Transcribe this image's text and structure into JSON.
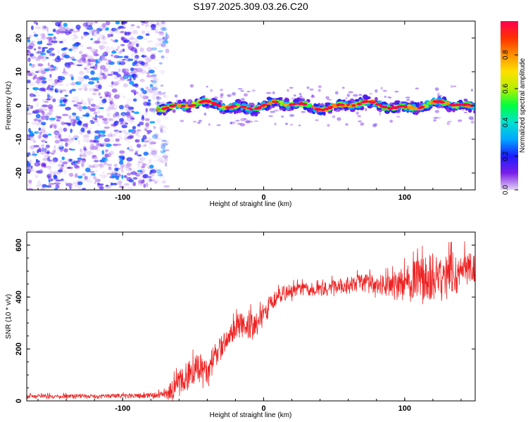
{
  "title": "S197.2025.309.03.26.C20",
  "chart_data": [
    {
      "type": "heatmap",
      "xlabel": "Height of straight line (km)",
      "ylabel": "Frequency (Hz)",
      "xlim": [
        -168,
        150
      ],
      "ylim": [
        -25,
        25
      ],
      "xticks": [
        -100,
        0,
        100
      ],
      "yticks": [
        -20,
        -10,
        0,
        10,
        20
      ],
      "noise_region_x": [
        -168,
        -68
      ],
      "signal_band_x": [
        -75,
        150
      ],
      "signal_band_center_hz": 0,
      "signal_band_halfwidth_hz": 2,
      "colorbar": {
        "label": "Normalized spectral amplitude",
        "range": [
          0,
          1
        ],
        "ticks": [
          0.0,
          0.2,
          0.4,
          0.6,
          0.8
        ],
        "colors": [
          "#e4d3f4",
          "#7a1fe8",
          "#1c1cff",
          "#00a8ff",
          "#00e0d0",
          "#00ff40",
          "#b4f000",
          "#ffe000",
          "#ff9000",
          "#ff3000",
          "#ff0050"
        ]
      }
    },
    {
      "type": "line",
      "xlabel": "Height of straight line (km)",
      "ylabel": "SNR (10 * v/v)",
      "xlim": [
        -168,
        150
      ],
      "ylim": [
        0,
        650
      ],
      "xticks": [
        -100,
        0,
        100
      ],
      "yticks": [
        0,
        200,
        400,
        600
      ],
      "color": "#ee2222",
      "series": [
        {
          "name": "SNR",
          "x": [
            -168,
            -140,
            -110,
            -85,
            -70,
            -65,
            -60,
            -55,
            -50,
            -45,
            -40,
            -35,
            -30,
            -25,
            -20,
            -15,
            -10,
            -5,
            0,
            5,
            10,
            15,
            20,
            25,
            30,
            40,
            50,
            60,
            70,
            80,
            90,
            100,
            110,
            120,
            130,
            140,
            150
          ],
          "y": [
            18,
            18,
            19,
            20,
            25,
            40,
            60,
            95,
            115,
            125,
            110,
            170,
            210,
            250,
            280,
            300,
            310,
            300,
            340,
            380,
            400,
            415,
            420,
            430,
            432,
            425,
            440,
            450,
            455,
            445,
            445,
            460,
            470,
            480,
            490,
            510,
            520
          ],
          "spread": [
            8,
            8,
            8,
            9,
            15,
            40,
            55,
            60,
            55,
            60,
            55,
            50,
            40,
            40,
            45,
            55,
            70,
            40,
            40,
            35,
            30,
            30,
            30,
            25,
            25,
            25,
            30,
            30,
            35,
            40,
            45,
            60,
            80,
            90,
            80,
            70,
            60
          ]
        }
      ]
    }
  ]
}
